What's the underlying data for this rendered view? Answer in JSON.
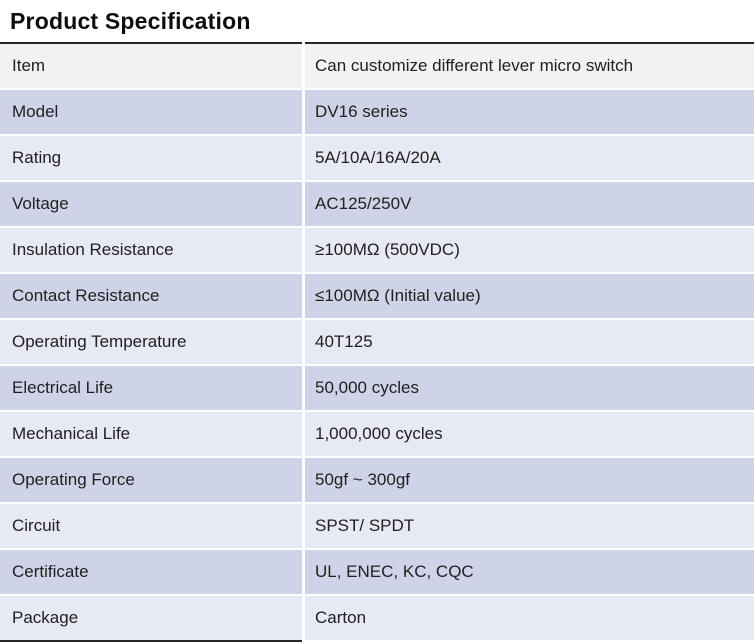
{
  "page": {
    "title": "Product Specification"
  },
  "table": {
    "rows": [
      {
        "label": "Item",
        "value": "Can customize different lever micro switch"
      },
      {
        "label": "Model",
        "value": "DV16 series"
      },
      {
        "label": "Rating",
        "value": "5A/10A/16A/20A"
      },
      {
        "label": "Voltage",
        "value": "AC125/250V"
      },
      {
        "label": "Insulation Resistance",
        "value": "≥100MΩ (500VDC)"
      },
      {
        "label": "Contact Resistance",
        "value": "≤100MΩ (Initial value)"
      },
      {
        "label": "Operating Temperature",
        "value": "40T125"
      },
      {
        "label": "Electrical Life",
        "value": "50,000 cycles"
      },
      {
        "label": "Mechanical Life",
        "value": "1,000,000 cycles"
      },
      {
        "label": "Operating Force",
        "value": "50gf ~ 300gf"
      },
      {
        "label": "Circuit",
        "value": "SPST/ SPDT"
      },
      {
        "label": "Certificate",
        "value": "UL, ENEC, KC, CQC"
      },
      {
        "label": "Package",
        "value": "Carton"
      }
    ]
  },
  "colors": {
    "row_first": "#f2f2f0",
    "row_light": "#e7e9f5",
    "row_medium": "#cfd3e7",
    "border_dark": "#262626",
    "text": "#212121"
  }
}
